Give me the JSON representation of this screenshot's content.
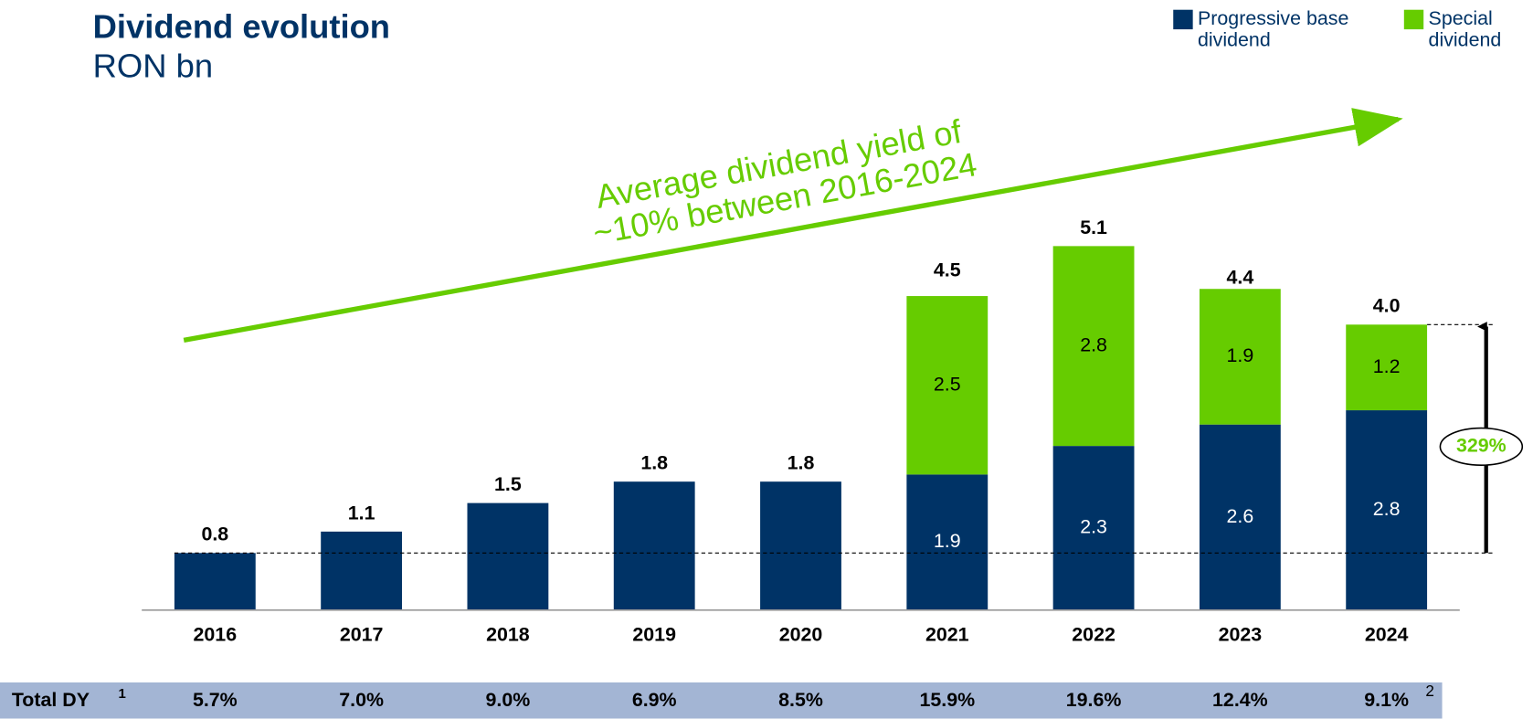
{
  "chart_data": {
    "type": "stacked_bar",
    "title": "Dividend evolution",
    "subtitle": "RON bn",
    "categories": [
      "2016",
      "2017",
      "2018",
      "2019",
      "2020",
      "2021",
      "2022",
      "2023",
      "2024"
    ],
    "series": [
      {
        "name": "Progressive base dividend",
        "color": "#003366",
        "values": [
          0.8,
          1.1,
          1.5,
          1.8,
          1.8,
          1.9,
          2.3,
          2.6,
          2.8
        ]
      },
      {
        "name": "Special dividend",
        "color": "#66cc00",
        "values": [
          null,
          null,
          null,
          null,
          null,
          2.5,
          2.8,
          1.9,
          1.2
        ]
      }
    ],
    "totals": {
      "values": [
        0.8,
        1.1,
        1.5,
        1.8,
        1.8,
        4.5,
        5.1,
        4.4,
        4.0
      ],
      "value_labels": [
        "0.8",
        "1.1",
        "1.5",
        "1.8",
        "1.8",
        "4.5",
        "5.1",
        "4.4",
        "4.0"
      ]
    },
    "ylim": [
      0,
      6
    ],
    "annotation": [
      "Average dividend yield of",
      "~10% between 2016-2024"
    ],
    "growth_label": "329%",
    "legend": "top-right",
    "dy_row": {
      "label": "Total DY",
      "note": "1",
      "values": [
        "5.7%",
        "7.0%",
        "9.0%",
        "6.9%",
        "8.5%",
        "15.9%",
        "19.6%",
        "12.4%",
        "9.1%"
      ],
      "last_note": "2"
    }
  }
}
